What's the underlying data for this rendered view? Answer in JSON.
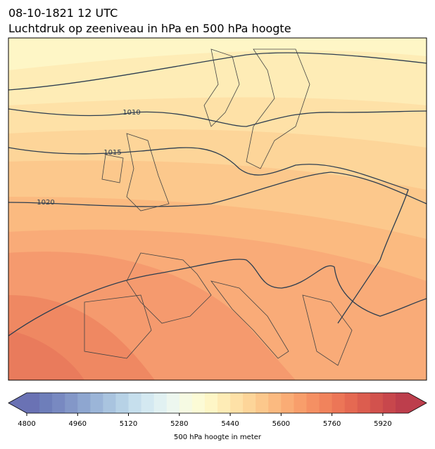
{
  "title": [
    "08-10-1821 12 UTC",
    "Luchtdruk op zeeniveau in hPa en 500 hPa hoogte"
  ],
  "isobar_labels": [
    "1010",
    "1015",
    "1020"
  ],
  "colorbar": {
    "label": "500 hPa hoogte in meter",
    "range": [
      4800,
      6000
    ],
    "ticks": [
      4800,
      4960,
      5120,
      5280,
      5440,
      5600,
      5760,
      5920
    ],
    "colors": [
      "#6a72b4",
      "#6e7eba",
      "#7889c1",
      "#8397c8",
      "#8ea6d0",
      "#9bb5d8",
      "#a9c4df",
      "#b7d2e6",
      "#c6dfed",
      "#d4e9f1",
      "#e1f1f2",
      "#edf7ef",
      "#f6fae3",
      "#fcfbd6",
      "#fef6c6",
      "#feecb6",
      "#fee1a7",
      "#fdd599",
      "#fcc88c",
      "#fbba80",
      "#faac75",
      "#f89e6b",
      "#f59063",
      "#f1835c",
      "#ec7657",
      "#e56952",
      "#dc5d4f",
      "#d2524d",
      "#c8474c",
      "#bd3e4c"
    ]
  }
}
